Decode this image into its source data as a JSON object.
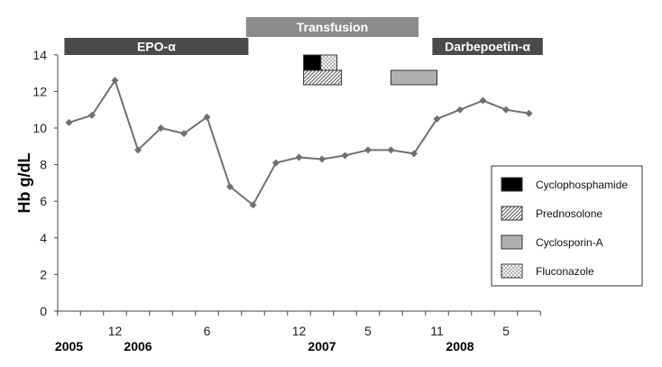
{
  "chart_data": {
    "type": "line",
    "ylabel": "Hb g/dL",
    "ylim": [
      0,
      14
    ],
    "yticks": [
      0,
      2,
      4,
      6,
      8,
      10,
      12,
      14
    ],
    "grid": false,
    "x_tick_labels": [
      {
        "index": 2,
        "label": "12"
      },
      {
        "index": 6,
        "label": "6"
      },
      {
        "index": 10,
        "label": "12"
      },
      {
        "index": 13,
        "label": "5"
      },
      {
        "index": 16,
        "label": "11"
      },
      {
        "index": 19,
        "label": "5"
      }
    ],
    "x_year_labels": [
      {
        "index": 0,
        "label": "2005"
      },
      {
        "index": 3,
        "label": "2006"
      },
      {
        "index": 11,
        "label": "2007"
      },
      {
        "index": 17,
        "label": "2008"
      }
    ],
    "series": [
      {
        "color": "#707070",
        "values": [
          10.3,
          10.7,
          12.6,
          8.8,
          10.0,
          9.7,
          10.6,
          6.8,
          5.8,
          8.1,
          8.4,
          8.3,
          8.5,
          8.8,
          8.8,
          8.6,
          10.5,
          11.0,
          11.5,
          11.0,
          10.8
        ]
      }
    ],
    "therapy_bands": [
      {
        "label": "EPO-α",
        "from": -0.2,
        "to": 7.8,
        "color": "#4a4a4a",
        "row": "top"
      },
      {
        "label": "Transfusion",
        "from": 7.7,
        "to": 15.2,
        "color": "#8c8c8c",
        "row": "upper"
      },
      {
        "label": "Darbepoetin-α",
        "from": 15.8,
        "to": 20.6,
        "color": "#4a4a4a",
        "row": "top"
      }
    ],
    "drug_boxes": [
      {
        "drug": "Cyclophosphamide",
        "from": 10.2,
        "to": 10.95,
        "row": 1
      },
      {
        "drug": "Fluconazole",
        "from": 10.95,
        "to": 11.65,
        "row": 1
      },
      {
        "drug": "Prednosolone",
        "from": 10.2,
        "to": 11.85,
        "row": 2
      },
      {
        "drug": "Cyclosporin-A",
        "from": 14.0,
        "to": 16.0,
        "row": 2
      }
    ],
    "legend": {
      "position": "right",
      "items": [
        {
          "label": "Cyclophosphamide",
          "pattern": "solid-black"
        },
        {
          "label": "Prednosolone",
          "pattern": "hatch"
        },
        {
          "label": "Cyclosporin-A",
          "pattern": "gray"
        },
        {
          "label": "Fluconazole",
          "pattern": "dots"
        }
      ]
    }
  }
}
